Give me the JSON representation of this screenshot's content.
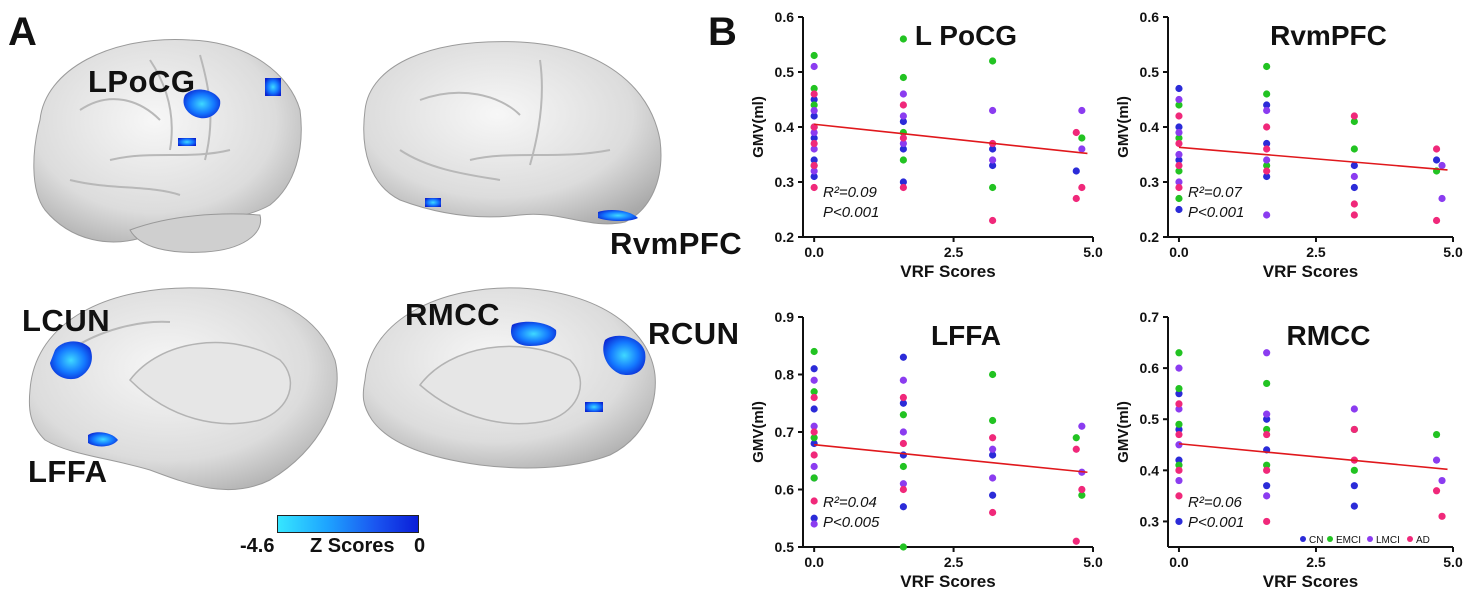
{
  "panel_a": {
    "letter": "A",
    "regions": [
      "LPoCG",
      "RvmPFC",
      "LCUN",
      "RMCC",
      "RCUN",
      "LFFA"
    ],
    "colorbar": {
      "min_label": "-4.6",
      "title": "Z Scores",
      "max_label": "0",
      "low_color": "#36e6ff",
      "high_color": "#0a1ed8"
    }
  },
  "panel_b": {
    "letter": "B"
  },
  "colors": {
    "CN": "#2b2bd8",
    "EMCI": "#22c322",
    "LMCI": "#8b3cf0",
    "AD": "#f0287a",
    "fit": "#e0181c"
  },
  "chart_data": [
    {
      "type": "scatter",
      "title": "L PoCG",
      "xlabel": "VRF Scores",
      "ylabel": "GMV(ml)",
      "xlim": [
        -0.2,
        5.0
      ],
      "ylim": [
        0.2,
        0.6
      ],
      "xticks": [
        "0.0",
        "2.5",
        "5.0"
      ],
      "yticks": [
        "0.2",
        "0.3",
        "0.4",
        "0.5",
        "0.6"
      ],
      "stats": {
        "r2": "R²=0.09",
        "p": "P<0.001"
      },
      "fit": {
        "x": [
          0,
          4.9
        ],
        "y": [
          0.405,
          0.352
        ]
      },
      "series": [
        {
          "name": "CN",
          "color": "#2b2bd8",
          "x": [
            0,
            0,
            0,
            0,
            0,
            1.6,
            1.6,
            1.6,
            3.2,
            3.2,
            4.7
          ],
          "y": [
            0.34,
            0.38,
            0.42,
            0.45,
            0.31,
            0.36,
            0.41,
            0.3,
            0.36,
            0.33,
            0.32
          ]
        },
        {
          "name": "EMCI",
          "color": "#22c322",
          "x": [
            0,
            0,
            0,
            0,
            0,
            1.6,
            1.6,
            1.6,
            1.6,
            3.2,
            3.2,
            4.8
          ],
          "y": [
            0.53,
            0.47,
            0.44,
            0.4,
            0.33,
            0.56,
            0.49,
            0.39,
            0.34,
            0.52,
            0.29,
            0.38
          ]
        },
        {
          "name": "LMCI",
          "color": "#8b3cf0",
          "x": [
            0,
            0,
            0,
            0,
            0,
            1.6,
            1.6,
            1.6,
            3.2,
            3.2,
            4.8,
            4.8
          ],
          "y": [
            0.51,
            0.43,
            0.39,
            0.36,
            0.32,
            0.46,
            0.42,
            0.37,
            0.43,
            0.34,
            0.43,
            0.36
          ]
        },
        {
          "name": "AD",
          "color": "#f0287a",
          "x": [
            0,
            0,
            0,
            0,
            0,
            1.6,
            1.6,
            1.6,
            3.2,
            3.2,
            4.7,
            4.7,
            4.8
          ],
          "y": [
            0.46,
            0.4,
            0.37,
            0.33,
            0.29,
            0.44,
            0.38,
            0.29,
            0.37,
            0.23,
            0.39,
            0.27,
            0.29
          ]
        }
      ]
    },
    {
      "type": "scatter",
      "title": "RvmPFC",
      "xlabel": "VRF Scores",
      "ylabel": "GMV(ml)",
      "xlim": [
        -0.2,
        5.0
      ],
      "ylim": [
        0.2,
        0.6
      ],
      "xticks": [
        "0.0",
        "2.5",
        "5.0"
      ],
      "yticks": [
        "0.2",
        "0.3",
        "0.4",
        "0.5",
        "0.6"
      ],
      "stats": {
        "r2": "R²=0.07",
        "p": "P<0.001"
      },
      "fit": {
        "x": [
          0,
          4.9
        ],
        "y": [
          0.363,
          0.322
        ]
      },
      "series": [
        {
          "name": "CN",
          "color": "#2b2bd8",
          "x": [
            0,
            0,
            0,
            0,
            1.6,
            1.6,
            1.6,
            3.2,
            3.2,
            4.7
          ],
          "y": [
            0.47,
            0.4,
            0.34,
            0.25,
            0.44,
            0.37,
            0.31,
            0.33,
            0.29,
            0.34
          ]
        },
        {
          "name": "EMCI",
          "color": "#22c322",
          "x": [
            0,
            0,
            0,
            0,
            1.6,
            1.6,
            1.6,
            3.2,
            3.2,
            4.7
          ],
          "y": [
            0.44,
            0.38,
            0.32,
            0.27,
            0.51,
            0.46,
            0.33,
            0.41,
            0.36,
            0.32
          ]
        },
        {
          "name": "LMCI",
          "color": "#8b3cf0",
          "x": [
            0,
            0,
            0,
            0,
            1.6,
            1.6,
            1.6,
            3.2,
            4.8,
            4.8
          ],
          "y": [
            0.45,
            0.39,
            0.35,
            0.3,
            0.43,
            0.34,
            0.24,
            0.31,
            0.33,
            0.27
          ]
        },
        {
          "name": "AD",
          "color": "#f0287a",
          "x": [
            0,
            0,
            0,
            0,
            1.6,
            1.6,
            1.6,
            3.2,
            3.2,
            3.2,
            4.7,
            4.7
          ],
          "y": [
            0.42,
            0.37,
            0.33,
            0.29,
            0.4,
            0.36,
            0.32,
            0.42,
            0.26,
            0.24,
            0.36,
            0.23
          ]
        }
      ]
    },
    {
      "type": "scatter",
      "title": "LFFA",
      "xlabel": "VRF Scores",
      "ylabel": "GMV(ml)",
      "xlim": [
        -0.2,
        5.0
      ],
      "ylim": [
        0.5,
        0.9
      ],
      "xticks": [
        "0.0",
        "2.5",
        "5.0"
      ],
      "yticks": [
        "0.5",
        "0.6",
        "0.7",
        "0.8",
        "0.9"
      ],
      "stats": {
        "r2": "R²=0.04",
        "p": "P<0.005"
      },
      "fit": {
        "x": [
          0,
          4.9
        ],
        "y": [
          0.678,
          0.63
        ]
      },
      "series": [
        {
          "name": "CN",
          "color": "#2b2bd8",
          "x": [
            0,
            0,
            0,
            0,
            0,
            1.6,
            1.6,
            1.6,
            1.6,
            3.2,
            3.2
          ],
          "y": [
            0.81,
            0.74,
            0.68,
            0.62,
            0.55,
            0.83,
            0.75,
            0.66,
            0.57,
            0.66,
            0.59
          ]
        },
        {
          "name": "EMCI",
          "color": "#22c322",
          "x": [
            0,
            0,
            0,
            0,
            1.6,
            1.6,
            1.6,
            3.2,
            3.2,
            4.7,
            4.8
          ],
          "y": [
            0.84,
            0.77,
            0.69,
            0.62,
            0.73,
            0.64,
            0.5,
            0.8,
            0.72,
            0.69,
            0.59
          ]
        },
        {
          "name": "LMCI",
          "color": "#8b3cf0",
          "x": [
            0,
            0,
            0,
            0,
            1.6,
            1.6,
            1.6,
            3.2,
            3.2,
            4.8,
            4.8
          ],
          "y": [
            0.79,
            0.71,
            0.64,
            0.54,
            0.79,
            0.7,
            0.61,
            0.67,
            0.62,
            0.71,
            0.63
          ]
        },
        {
          "name": "AD",
          "color": "#f0287a",
          "x": [
            0,
            0,
            0,
            0,
            1.6,
            1.6,
            1.6,
            3.2,
            3.2,
            4.7,
            4.7,
            4.8
          ],
          "y": [
            0.76,
            0.7,
            0.66,
            0.58,
            0.76,
            0.68,
            0.6,
            0.69,
            0.56,
            0.67,
            0.51,
            0.6
          ]
        }
      ]
    },
    {
      "type": "scatter",
      "title": "RMCC",
      "xlabel": "VRF Scores",
      "ylabel": "GMV(ml)",
      "xlim": [
        -0.2,
        5.0
      ],
      "ylim": [
        0.25,
        0.7
      ],
      "xticks": [
        "0.0",
        "2.5",
        "5.0"
      ],
      "yticks": [
        "0.3",
        "0.4",
        "0.5",
        "0.6",
        "0.7"
      ],
      "stats": {
        "r2": "R²=0.06",
        "p": "P<0.001"
      },
      "fit": {
        "x": [
          0,
          4.9
        ],
        "y": [
          0.452,
          0.402
        ]
      },
      "series": [
        {
          "name": "CN",
          "color": "#2b2bd8",
          "x": [
            0,
            0,
            0,
            0,
            1.6,
            1.6,
            1.6,
            3.2,
            3.2
          ],
          "y": [
            0.55,
            0.48,
            0.42,
            0.3,
            0.5,
            0.44,
            0.37,
            0.37,
            0.33
          ]
        },
        {
          "name": "EMCI",
          "color": "#22c322",
          "x": [
            0,
            0,
            0,
            0,
            1.6,
            1.6,
            1.6,
            3.2,
            3.2,
            4.7
          ],
          "y": [
            0.63,
            0.56,
            0.49,
            0.41,
            0.57,
            0.48,
            0.41,
            0.48,
            0.4,
            0.47
          ]
        },
        {
          "name": "LMCI",
          "color": "#8b3cf0",
          "x": [
            0,
            0,
            0,
            0,
            1.6,
            1.6,
            1.6,
            3.2,
            4.7,
            4.8
          ],
          "y": [
            0.6,
            0.52,
            0.45,
            0.38,
            0.63,
            0.51,
            0.35,
            0.52,
            0.42,
            0.38
          ]
        },
        {
          "name": "AD",
          "color": "#f0287a",
          "x": [
            0,
            0,
            0,
            0,
            1.6,
            1.6,
            1.6,
            3.2,
            3.2,
            4.7,
            4.8
          ],
          "y": [
            0.53,
            0.47,
            0.4,
            0.35,
            0.47,
            0.4,
            0.3,
            0.48,
            0.42,
            0.36,
            0.31
          ]
        }
      ]
    }
  ],
  "legend": [
    "CN",
    "EMCI",
    "LMCI",
    "AD"
  ]
}
